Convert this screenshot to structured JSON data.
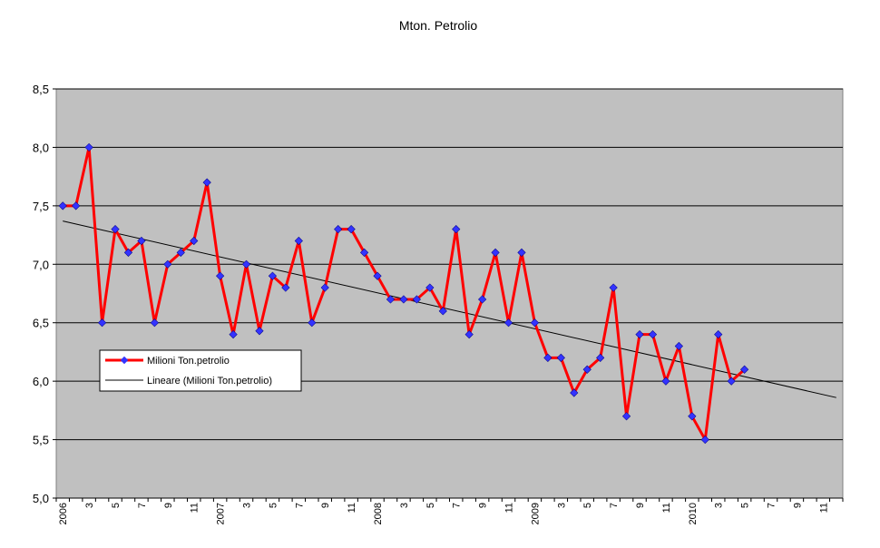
{
  "chart_data": {
    "type": "line",
    "title": "Mton. Petrolio",
    "xlabel": "",
    "ylabel": "",
    "ylim": [
      5.0,
      8.5
    ],
    "ytick_labels": [
      "5,0",
      "5,5",
      "6,0",
      "6,5",
      "7,0",
      "7,5",
      "8,0",
      "8,5"
    ],
    "xtick_labels": [
      "2006",
      "3",
      "5",
      "7",
      "9",
      "11",
      "2007",
      "3",
      "5",
      "7",
      "9",
      "11",
      "2008",
      "3",
      "5",
      "7",
      "9",
      "11",
      "2009",
      "3",
      "5",
      "7",
      "9",
      "11",
      "2010",
      "3",
      "5",
      "7",
      "9",
      "11"
    ],
    "grid": true,
    "legend_position": "left-middle",
    "series": [
      {
        "name": "Milioni Ton.petrolio",
        "color": "#ff0000",
        "marker_color": "#3333ff",
        "values": [
          7.5,
          7.5,
          8.0,
          6.5,
          7.3,
          7.1,
          7.2,
          6.5,
          7.0,
          7.1,
          7.2,
          7.7,
          6.9,
          6.4,
          7.0,
          6.43,
          6.9,
          6.8,
          7.2,
          6.5,
          6.8,
          7.3,
          7.3,
          7.1,
          6.9,
          6.7,
          6.7,
          6.7,
          6.8,
          6.6,
          7.3,
          6.4,
          6.7,
          7.1,
          6.5,
          7.1,
          6.5,
          6.2,
          6.2,
          5.9,
          6.1,
          6.2,
          6.8,
          5.7,
          6.4,
          6.4,
          6.0,
          6.3,
          5.7,
          5.5,
          6.4,
          6.0,
          6.1
        ]
      },
      {
        "name": "Lineare (Milioni Ton.petrolio)",
        "color": "#000000",
        "trend_start": 7.37,
        "trend_end": 5.86
      }
    ],
    "n_periods": 60,
    "plot_background": "#c0c0c0"
  }
}
